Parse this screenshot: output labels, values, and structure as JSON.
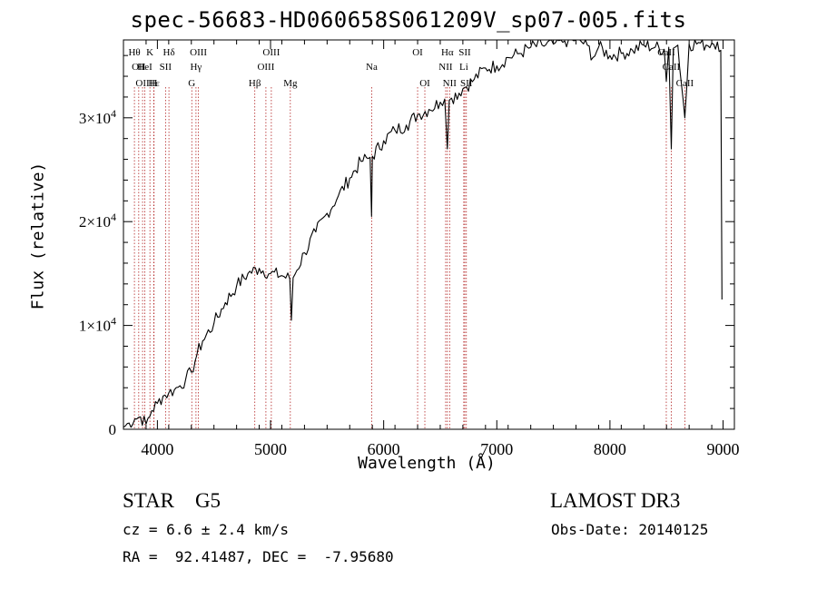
{
  "chart_data": {
    "type": "line",
    "title": "spec-56683-HD060658S061209V_sp07-005.fits",
    "xlabel": "Wavelength (Å)",
    "ylabel": "Flux (relative)",
    "xlim": [
      3700,
      9100
    ],
    "ylim": [
      0,
      37500
    ],
    "x_ticks": [
      4000,
      5000,
      6000,
      7000,
      8000,
      9000
    ],
    "x_tick_labels": [
      "4000",
      "5000",
      "6000",
      "7000",
      "8000",
      "9000"
    ],
    "y_ticks": [
      0,
      10000,
      20000,
      30000
    ],
    "y_tick_labels": [
      {
        "mant": "0",
        "exp": ""
      },
      {
        "mant": "1×10",
        "exp": "4"
      },
      {
        "mant": "2×10",
        "exp": "4"
      },
      {
        "mant": "3×10",
        "exp": "4"
      }
    ],
    "series": [
      {
        "name": "flux",
        "x": [
          3700,
          3750,
          3800,
          3850,
          3900,
          3950,
          4000,
          4050,
          4100,
          4150,
          4200,
          4250,
          4300,
          4350,
          4400,
          4500,
          4600,
          4700,
          4800,
          4900,
          5000,
          5100,
          5170,
          5184,
          5200,
          5300,
          5400,
          5500,
          5600,
          5700,
          5800,
          5880,
          5893,
          5900,
          6000,
          6100,
          6200,
          6300,
          6400,
          6500,
          6540,
          6563,
          6580,
          6600,
          6700,
          6800,
          6900,
          7000,
          7100,
          7200,
          7300,
          7400,
          7500,
          7600,
          7700,
          7800,
          7850,
          7900,
          8000,
          8100,
          8200,
          8300,
          8400,
          8480,
          8498,
          8520,
          8542,
          8560,
          8600,
          8662,
          8700,
          8800,
          8850,
          8900,
          8950,
          8980,
          8990
        ],
        "y": [
          200,
          600,
          1000,
          1200,
          500,
          1800,
          2500,
          3200,
          3500,
          3800,
          4200,
          4800,
          5500,
          7200,
          8500,
          10200,
          12200,
          13800,
          15000,
          15500,
          15000,
          14800,
          14500,
          10500,
          14600,
          17000,
          19000,
          20800,
          22500,
          24200,
          25800,
          26200,
          20500,
          26300,
          27800,
          28800,
          29300,
          30300,
          30800,
          31500,
          31800,
          27000,
          31700,
          31900,
          32800,
          33700,
          34800,
          35000,
          35800,
          36200,
          36800,
          37000,
          37100,
          37400,
          37600,
          37000,
          35800,
          36800,
          36000,
          36200,
          36500,
          37000,
          36800,
          36600,
          33500,
          36800,
          27000,
          36700,
          37000,
          30000,
          37100,
          37200,
          37000,
          37200,
          37300,
          36500,
          12500
        ]
      }
    ],
    "lines": [
      {
        "wl": 3797,
        "label": "Hθ",
        "row": 1
      },
      {
        "wl": 3835,
        "label": "OII",
        "row": 2
      },
      {
        "wl": 3869,
        "label": "OII",
        "row": 3
      },
      {
        "wl": 3889,
        "label": "HeI",
        "row": 2
      },
      {
        "wl": 3934,
        "label": "K",
        "row": 1
      },
      {
        "wl": 3968,
        "label": "H",
        "row": 3
      },
      {
        "wl": 3970,
        "label": "Hε",
        "row": 3
      },
      {
        "wl": 4072,
        "label": "SII",
        "row": 2
      },
      {
        "wl": 4102,
        "label": "Hδ",
        "row": 1
      },
      {
        "wl": 4304,
        "label": "G",
        "row": 3
      },
      {
        "wl": 4341,
        "label": "Hγ",
        "row": 2
      },
      {
        "wl": 4363,
        "label": "OIII",
        "row": 1
      },
      {
        "wl": 4861,
        "label": "Hβ",
        "row": 3
      },
      {
        "wl": 4959,
        "label": "OIII",
        "row": 2
      },
      {
        "wl": 5007,
        "label": "OIII",
        "row": 1
      },
      {
        "wl": 5175,
        "label": "Mg",
        "row": 3
      },
      {
        "wl": 5894,
        "label": "Na",
        "row": 2
      },
      {
        "wl": 6300,
        "label": "OI",
        "row": 1
      },
      {
        "wl": 6364,
        "label": "OI",
        "row": 3
      },
      {
        "wl": 6548,
        "label": "NII",
        "row": 2
      },
      {
        "wl": 6563,
        "label": "Hα",
        "row": 1
      },
      {
        "wl": 6583,
        "label": "NII",
        "row": 3
      },
      {
        "wl": 6708,
        "label": "Li",
        "row": 2
      },
      {
        "wl": 6717,
        "label": "SII",
        "row": 1
      },
      {
        "wl": 6731,
        "label": "SII",
        "row": 3
      },
      {
        "wl": 8498,
        "label": "CaII",
        "row": 1
      },
      {
        "wl": 8542,
        "label": "CaII",
        "row": 2
      },
      {
        "wl": 8662,
        "label": "CaII",
        "row": 3
      }
    ]
  },
  "info": {
    "class_line": "STAR    G5",
    "survey": "LAMOST DR3",
    "cz_line": "cz = 6.6 ± 2.4 km/s",
    "obs_date": "Obs-Date: 20140125",
    "radec": "RA =  92.41487, DEC =  -7.95680"
  }
}
